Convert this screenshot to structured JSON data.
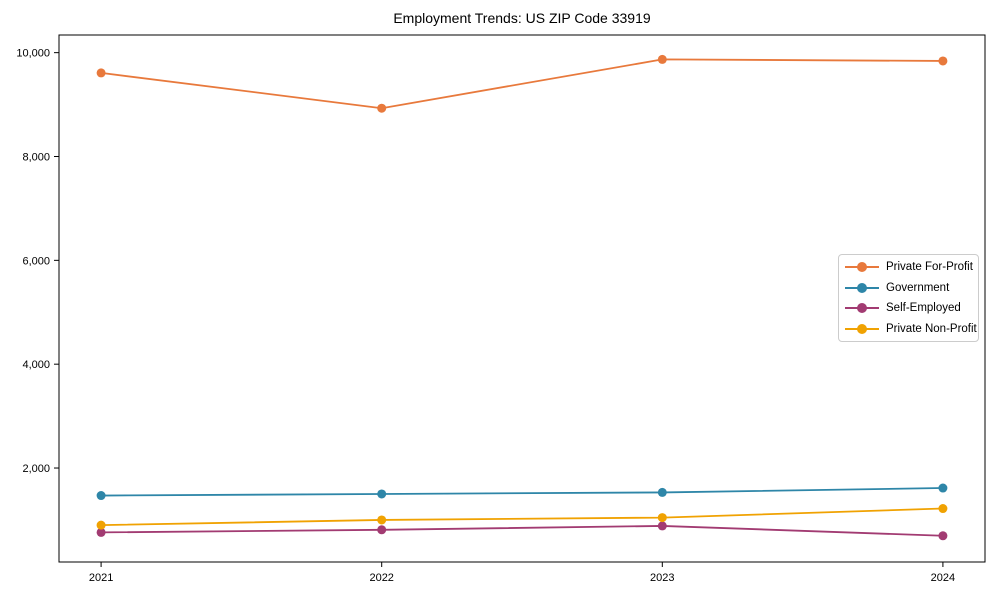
{
  "chart_data": {
    "type": "line",
    "title": "Employment Trends: US ZIP Code 33919",
    "categories": [
      "2021",
      "2022",
      "2023",
      "2024"
    ],
    "series": [
      {
        "name": "Private For-Profit",
        "color": "#E8793C",
        "values": [
          9610,
          8930,
          9870,
          9840
        ]
      },
      {
        "name": "Government",
        "color": "#2E86A8",
        "values": [
          1470,
          1500,
          1530,
          1615
        ]
      },
      {
        "name": "Self-Employed",
        "color": "#A23B72",
        "values": [
          760,
          810,
          885,
          695
        ]
      },
      {
        "name": "Private Non-Profit",
        "color": "#F0A202",
        "values": [
          900,
          1000,
          1045,
          1220
        ]
      }
    ],
    "yticks": [
      {
        "value": 2000,
        "label": "2,000"
      },
      {
        "value": 4000,
        "label": "4,000"
      },
      {
        "value": 6000,
        "label": "6,000"
      },
      {
        "value": 8000,
        "label": "8,000"
      },
      {
        "value": 10000,
        "label": "10,000"
      }
    ],
    "ylim": [
      190,
      10340
    ],
    "xlim": [
      -0.15,
      3.15
    ],
    "grid": false,
    "legend_position": "center-right",
    "axis_color": "#000000"
  }
}
